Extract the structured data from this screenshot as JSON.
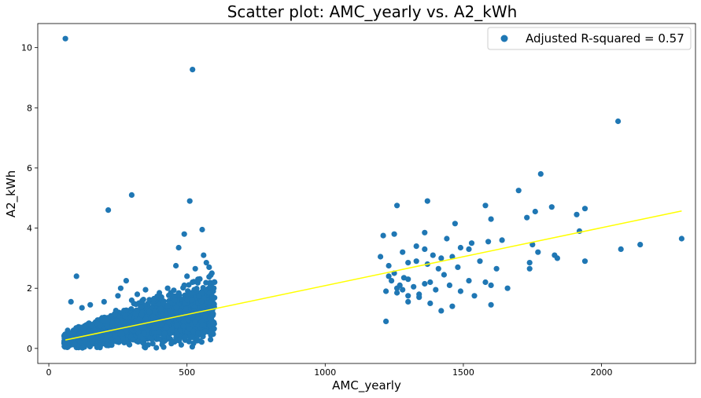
{
  "chart_data": {
    "type": "scatter",
    "title": "Scatter plot: AMC_yearly vs. A2_kWh",
    "xlabel": "AMC_yearly",
    "ylabel": "A2_kWh",
    "xlim": [
      -40,
      2340
    ],
    "ylim": [
      -0.5,
      10.8
    ],
    "x_ticks": [
      0,
      500,
      1000,
      1500,
      2000
    ],
    "y_ticks": [
      0,
      2,
      4,
      6,
      8,
      10
    ],
    "grid": false,
    "legend_position": "top-right",
    "legend": [
      {
        "label": "Adjusted R-squared = 0.57",
        "marker": "circle",
        "color": "#1f77b4"
      }
    ],
    "point_color": "#1f77b4",
    "regression_color": "#ffff00",
    "regression_line": {
      "x": [
        60,
        2290
      ],
      "y": [
        0.28,
        4.57
      ]
    },
    "points": [
      [
        60,
        10.3
      ],
      [
        520,
        9.27
      ],
      [
        2060,
        7.55
      ],
      [
        1780,
        5.8
      ],
      [
        300,
        5.1
      ],
      [
        510,
        4.9
      ],
      [
        215,
        4.6
      ],
      [
        1700,
        5.25
      ],
      [
        1370,
        4.9
      ],
      [
        1260,
        4.75
      ],
      [
        1760,
        4.55
      ],
      [
        1940,
        4.65
      ],
      [
        1820,
        4.7
      ],
      [
        1580,
        4.75
      ],
      [
        1910,
        4.45
      ],
      [
        1730,
        4.35
      ],
      [
        1470,
        4.15
      ],
      [
        1600,
        4.3
      ],
      [
        1360,
        3.85
      ],
      [
        1920,
        3.9
      ],
      [
        1210,
        3.75
      ],
      [
        1250,
        3.8
      ],
      [
        1440,
        3.65
      ],
      [
        1490,
        3.35
      ],
      [
        1530,
        3.5
      ],
      [
        1590,
        3.55
      ],
      [
        1640,
        3.6
      ],
      [
        1750,
        3.45
      ],
      [
        1770,
        3.2
      ],
      [
        1330,
        3.4
      ],
      [
        1280,
        3.2
      ],
      [
        1360,
        3.3
      ],
      [
        1390,
        3.1
      ],
      [
        1420,
        3.0
      ],
      [
        1460,
        3.05
      ],
      [
        1520,
        3.3
      ],
      [
        1200,
        3.05
      ],
      [
        1230,
        2.75
      ],
      [
        1300,
        2.85
      ],
      [
        1330,
        2.9
      ],
      [
        1370,
        2.8
      ],
      [
        1410,
        2.65
      ],
      [
        1480,
        2.7
      ],
      [
        1560,
        2.9
      ],
      [
        1620,
        2.65
      ],
      [
        1740,
        2.65
      ],
      [
        1740,
        2.85
      ],
      [
        1830,
        3.1
      ],
      [
        1840,
        3.0
      ],
      [
        1940,
        2.9
      ],
      [
        2070,
        3.3
      ],
      [
        2140,
        3.45
      ],
      [
        2290,
        3.65
      ],
      [
        1230,
        2.4
      ],
      [
        1240,
        2.25
      ],
      [
        1260,
        2.0
      ],
      [
        1270,
        2.1
      ],
      [
        1280,
        1.95
      ],
      [
        1300,
        2.3
      ],
      [
        1320,
        2.05
      ],
      [
        1340,
        1.8
      ],
      [
        1360,
        2.15
      ],
      [
        1380,
        2.2
      ],
      [
        1400,
        1.95
      ],
      [
        1430,
        2.45
      ],
      [
        1450,
        2.1
      ],
      [
        1490,
        1.9
      ],
      [
        1520,
        2.25
      ],
      [
        1580,
        2.2
      ],
      [
        1600,
        2.1
      ],
      [
        1660,
        2.0
      ],
      [
        1220,
        1.9
      ],
      [
        1260,
        1.85
      ],
      [
        1300,
        1.75
      ],
      [
        1340,
        1.7
      ],
      [
        1380,
        1.5
      ],
      [
        1420,
        1.25
      ],
      [
        1460,
        1.4
      ],
      [
        1540,
        1.75
      ],
      [
        1600,
        1.45
      ],
      [
        1220,
        0.9
      ],
      [
        1300,
        1.55
      ],
      [
        1250,
        2.5
      ],
      [
        1285,
        2.35
      ],
      [
        100,
        2.4
      ],
      [
        80,
        1.55
      ],
      [
        555,
        3.95
      ],
      [
        490,
        3.8
      ],
      [
        470,
        3.35
      ],
      [
        560,
        3.1
      ],
      [
        570,
        2.85
      ],
      [
        590,
        2.5
      ],
      [
        580,
        2.7
      ],
      [
        460,
        2.75
      ],
      [
        530,
        2.65
      ],
      [
        540,
        2.3
      ],
      [
        500,
        2.4
      ],
      [
        520,
        2.2
      ],
      [
        490,
        2.1
      ],
      [
        430,
        2.0
      ],
      [
        280,
        2.25
      ],
      [
        260,
        2.0
      ],
      [
        250,
        1.75
      ],
      [
        320,
        1.8
      ],
      [
        300,
        1.6
      ],
      [
        150,
        1.45
      ],
      [
        200,
        1.55
      ],
      [
        120,
        1.35
      ],
      [
        350,
        1.95
      ],
      [
        400,
        1.85
      ],
      [
        450,
        1.7
      ],
      [
        600,
        2.2
      ],
      [
        595,
        1.9
      ],
      [
        585,
        1.6
      ]
    ],
    "dense_cluster": {
      "x_range": [
        55,
        600
      ],
      "y_range": [
        0.0,
        1.7
      ],
      "points_rendered": 2500,
      "note": ""
    }
  }
}
